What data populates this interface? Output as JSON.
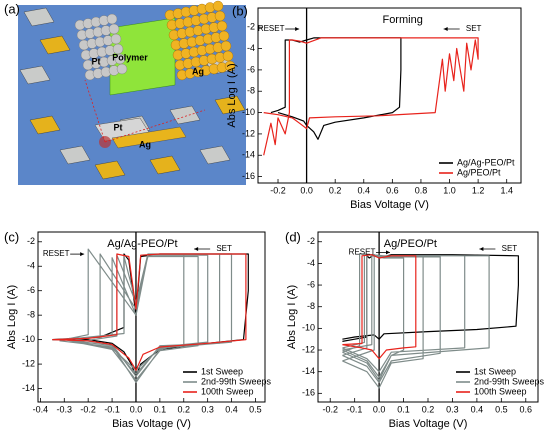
{
  "panel_labels": [
    "(a)",
    "(b)",
    "(c)",
    "(d)"
  ],
  "illustration": {
    "labels": [
      "Pt",
      "Polymer",
      "Ag",
      "Pt",
      "Ag"
    ]
  },
  "chart_data": [
    {
      "type": "line",
      "title": "Forming",
      "x_label": "Bias Voltage (V)",
      "y_label": "Abs Log I (A)",
      "annotations": [
        "RESET",
        "SET"
      ],
      "legend": "lower right",
      "xlim": [
        -0.34,
        1.5
      ],
      "xticks": [
        -0.2,
        {
          "value": 0,
          "label": "0.0"
        },
        0.2,
        0.4,
        0.6,
        0.8,
        {
          "value": 1,
          "label": "1.0"
        },
        1.2,
        1.4
      ],
      "ylim": [
        -16.6,
        -0.2
      ],
      "yticks": [
        -2,
        -4,
        -6,
        -8,
        -10,
        -12,
        -14,
        -16
      ],
      "series": [
        {
          "name": "Ag/Ag-PEO/Pt",
          "color": "#000000",
          "x": [
            -0.2,
            -0.1,
            -0.02,
            0,
            0.05,
            0.08,
            0.12,
            0.2,
            0.4,
            0.6,
            0.65,
            0.66,
            0.66,
            0.5,
            0.2,
            0.05,
            0,
            -0.05,
            -0.1,
            -0.15,
            -0.15,
            -0.2,
            -0.25
          ],
          "values": [
            -10,
            -10.4,
            -10.8,
            -11.2,
            -11.8,
            -12.5,
            -11.2,
            -10.9,
            -10.5,
            -10,
            -9.5,
            -6,
            -3,
            -3,
            -3,
            -3,
            -3.2,
            -3.4,
            -3.2,
            -3.2,
            -9.5,
            -9.8,
            -10
          ]
        },
        {
          "name": "Ag/PEO/Pt",
          "color": "#e8231c",
          "x": [
            -0.3,
            -0.2,
            -0.1,
            -0.05,
            0,
            0.02,
            0.2,
            0.5,
            0.9,
            0.95,
            0.97,
            1.0,
            1.03,
            1.05,
            1.1,
            1.12,
            1.15,
            1.18,
            1.2,
            1.2,
            1.0,
            0.5,
            0.1,
            0,
            -0.05,
            -0.1,
            -0.12,
            -0.12,
            -0.15,
            -0.2,
            -0.22,
            -0.25,
            -0.3
          ],
          "values": [
            -10,
            -10.2,
            -10.5,
            -11,
            -11.5,
            -10.5,
            -10.4,
            -10.3,
            -10,
            -5,
            -8,
            -4.5,
            -7,
            -4,
            -8,
            -3.5,
            -6,
            -3.2,
            -5,
            -3,
            -3,
            -3,
            -3,
            -3.5,
            -3.3,
            -3.2,
            -3.2,
            -10,
            -12,
            -10.5,
            -13,
            -11,
            -14
          ]
        }
      ]
    },
    {
      "type": "line",
      "title": "Ag/Ag-PEO/Pt",
      "x_label": "Bias Voltage (V)",
      "y_label": "Abs Log I (A)",
      "annotations": [
        "RESET",
        "SET"
      ],
      "legend": "lower right",
      "xlim": [
        -0.41,
        0.54
      ],
      "xticks": [
        -0.4,
        -0.3,
        -0.2,
        -0.1,
        {
          "value": 0,
          "label": "0.0"
        },
        0.1,
        0.2,
        0.3,
        0.4,
        0.5
      ],
      "ylim": [
        -15.1,
        -1.2
      ],
      "yticks": [
        -2,
        -4,
        -6,
        -8,
        -10,
        -12,
        -14
      ],
      "series": [
        {
          "name": "1st Sweep",
          "color": "#000000",
          "x": [
            -0.35,
            -0.2,
            -0.1,
            -0.05,
            -0.02,
            0,
            0.02,
            0.1,
            0.3,
            0.45,
            0.47,
            0.47,
            0.3,
            0.1,
            0.02,
            0,
            -0.03,
            -0.05,
            -0.05,
            -0.15,
            -0.35
          ],
          "values": [
            -10,
            -10,
            -10.3,
            -11,
            -12,
            -13,
            -12,
            -10.8,
            -10.3,
            -10,
            -6,
            -3,
            -3,
            -3,
            -3.2,
            -8,
            -3.5,
            -3,
            -9,
            -9.8,
            -10
          ]
        },
        {
          "name": "2nd-99th Sweeps",
          "color": "#7f8c8a",
          "x": [
            -0.3,
            -0.1,
            0,
            0.1,
            0.2,
            0.2,
            0.05,
            0,
            -0.05,
            -0.05,
            -0.3,
            null,
            -0.32,
            -0.1,
            0,
            0.1,
            0.3,
            0.3,
            0.05,
            0,
            -0.1,
            -0.1,
            -0.32,
            null,
            -0.28,
            -0.1,
            0,
            0.1,
            0.35,
            0.35,
            0.05,
            0,
            -0.15,
            -0.15,
            -0.28,
            null,
            -0.3,
            -0.1,
            0,
            0.1,
            0.4,
            0.4,
            0.05,
            0,
            -0.2,
            -0.2,
            -0.3,
            null,
            -0.25,
            -0.1,
            0,
            0.1,
            0.26,
            0.26,
            0.05,
            0,
            -0.08,
            -0.08,
            -0.25
          ],
          "values": [
            -10,
            -10.5,
            -13.5,
            -10.8,
            -10.4,
            -3,
            -3,
            -7,
            -3.2,
            -9.5,
            -10,
            null,
            -10.1,
            -10.6,
            -12.8,
            -10.6,
            -10.2,
            -3.1,
            -3.1,
            -8,
            -3.3,
            -9.6,
            -10.1,
            null,
            -9.9,
            -10.4,
            -13,
            -10.5,
            -10.3,
            -3,
            -3,
            -7.5,
            -3,
            -9.8,
            -9.9,
            null,
            -10,
            -10.7,
            -12.5,
            -10.7,
            -10.2,
            -3,
            -3,
            -8,
            -2.6,
            -9.6,
            -10,
            null,
            -10.2,
            -10.8,
            -13.3,
            -10.9,
            -10.5,
            -3.2,
            -3.2,
            -7,
            -3.1,
            -9.7,
            -10.2
          ]
        },
        {
          "name": "100th Sweep",
          "color": "#e8231c",
          "x": [
            -0.35,
            -0.2,
            -0.1,
            -0.03,
            0,
            0.03,
            0.1,
            0.3,
            0.46,
            0.46,
            0.3,
            0.1,
            0.02,
            0,
            -0.03,
            -0.08,
            -0.08,
            -0.2,
            -0.35
          ],
          "values": [
            -10,
            -10.1,
            -10.4,
            -11.5,
            -12.5,
            -11.2,
            -10.6,
            -10.3,
            -10,
            -3,
            -3,
            -3,
            -3.1,
            -7.5,
            -3.2,
            -3,
            -9.6,
            -9.9,
            -10
          ]
        }
      ]
    },
    {
      "type": "line",
      "title": "Ag/PEO/Pt",
      "x_label": "Bias Voltage (V)",
      "y_label": "Abs Log I (A)",
      "annotations": [
        "RESET",
        "SET"
      ],
      "legend": "lower right",
      "xlim": [
        -0.25,
        0.65
      ],
      "xticks": [
        -0.2,
        -0.1,
        {
          "value": 0,
          "label": "0.0"
        },
        0.1,
        0.2,
        0.3,
        0.4,
        0.5,
        0.6
      ],
      "ylim": [
        -16.8,
        -1.1
      ],
      "yticks": [
        -2,
        -4,
        -6,
        -8,
        -10,
        -12,
        -14,
        -16
      ],
      "series": [
        {
          "name": "1st Sweep",
          "color": "#000000",
          "x": [
            -0.15,
            -0.1,
            -0.02,
            0,
            0.02,
            0.2,
            0.4,
            0.56,
            0.57,
            0.57,
            0.3,
            0.05,
            0,
            -0.02,
            -0.04,
            -0.05,
            -0.05,
            -0.1,
            -0.15
          ],
          "values": [
            -11,
            -10.8,
            -10.6,
            -11,
            -10.5,
            -10.3,
            -10.1,
            -9.8,
            -6,
            -3.3,
            -3.2,
            -3.2,
            -3.5,
            -3.2,
            -3.5,
            -3.3,
            -10.8,
            -11,
            -11.2
          ]
        },
        {
          "name": "2nd-99th Sweeps",
          "color": "#7f8c8a",
          "x": [
            -0.15,
            -0.05,
            0,
            0.05,
            0.1,
            0.1,
            0.02,
            -0.03,
            -0.03,
            -0.15,
            null,
            -0.15,
            -0.05,
            0,
            0.05,
            0.25,
            0.25,
            0.02,
            -0.05,
            -0.05,
            -0.15,
            null,
            -0.15,
            -0.05,
            0,
            0.05,
            0.35,
            0.35,
            0.02,
            -0.06,
            -0.06,
            -0.15,
            null,
            -0.15,
            -0.05,
            0,
            0.05,
            0.45,
            0.45,
            0.02,
            -0.08,
            -0.08,
            -0.15,
            null,
            -0.15,
            -0.05,
            0,
            0.05,
            0.18,
            0.18,
            0.02,
            -0.02,
            -0.02,
            -0.15
          ],
          "values": [
            -12,
            -13,
            -14.5,
            -12.5,
            -12,
            -3.5,
            -3.5,
            -3.3,
            -11.5,
            -12,
            null,
            -12.5,
            -13.5,
            -15,
            -13,
            -12.3,
            -3.4,
            -3.4,
            -3.2,
            -11.8,
            -12.5,
            null,
            -11.8,
            -12.8,
            -14,
            -12.2,
            -11.8,
            -3.3,
            -3.3,
            -3.2,
            -11.3,
            -11.8,
            null,
            -12.2,
            -13.2,
            -14.8,
            -12.5,
            -11.8,
            -3.3,
            -3.3,
            -3.1,
            -11.6,
            -12.2,
            null,
            -13,
            -14,
            -15.5,
            -13.2,
            -12.8,
            -3.4,
            -3.4,
            -3.3,
            -12,
            -13
          ]
        },
        {
          "name": "100th Sweep",
          "color": "#e8231c",
          "x": [
            -0.15,
            -0.07,
            -0.03,
            0,
            0.03,
            0.1,
            0.15,
            0.15,
            0.05,
            0,
            -0.03,
            -0.07,
            -0.07,
            -0.15
          ],
          "values": [
            -11.5,
            -11.8,
            -12,
            -12.8,
            -12,
            -11.8,
            -11.7,
            -3.3,
            -3.3,
            -3.5,
            -3.2,
            -3.3,
            -11.4,
            -11.5
          ]
        }
      ]
    }
  ]
}
